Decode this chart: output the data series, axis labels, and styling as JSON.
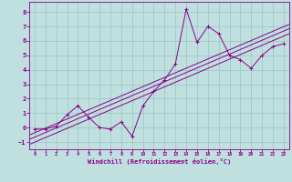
{
  "title": "",
  "xlabel": "Windchill (Refroidissement éolien,°C)",
  "ylabel": "",
  "bg_color": "#c0e0e0",
  "line_color": "#880088",
  "grid_color": "#a0c8c8",
  "x_data": [
    0,
    1,
    2,
    3,
    4,
    5,
    6,
    7,
    8,
    9,
    10,
    11,
    12,
    13,
    14,
    15,
    16,
    17,
    18,
    19,
    20,
    21,
    22,
    23
  ],
  "y_data": [
    -0.1,
    -0.1,
    0.1,
    0.9,
    1.5,
    0.7,
    0.0,
    -0.1,
    0.4,
    -0.6,
    1.5,
    2.5,
    3.3,
    4.4,
    8.2,
    5.9,
    7.0,
    6.5,
    5.0,
    4.7,
    4.1,
    5.0,
    5.6,
    5.8
  ],
  "reg_offsets": [
    -0.35,
    0.0,
    0.3
  ],
  "xlim": [
    -0.5,
    23.5
  ],
  "ylim": [
    -1.5,
    8.7
  ],
  "xticks": [
    0,
    1,
    2,
    3,
    4,
    5,
    6,
    7,
    8,
    9,
    10,
    11,
    12,
    13,
    14,
    15,
    16,
    17,
    18,
    19,
    20,
    21,
    22,
    23
  ],
  "yticks": [
    -1,
    0,
    1,
    2,
    3,
    4,
    5,
    6,
    7,
    8
  ],
  "tick_fontsize_x": 3.8,
  "tick_fontsize_y": 5.0,
  "xlabel_fontsize": 5.0,
  "line_width": 0.7,
  "marker_size": 2.5
}
